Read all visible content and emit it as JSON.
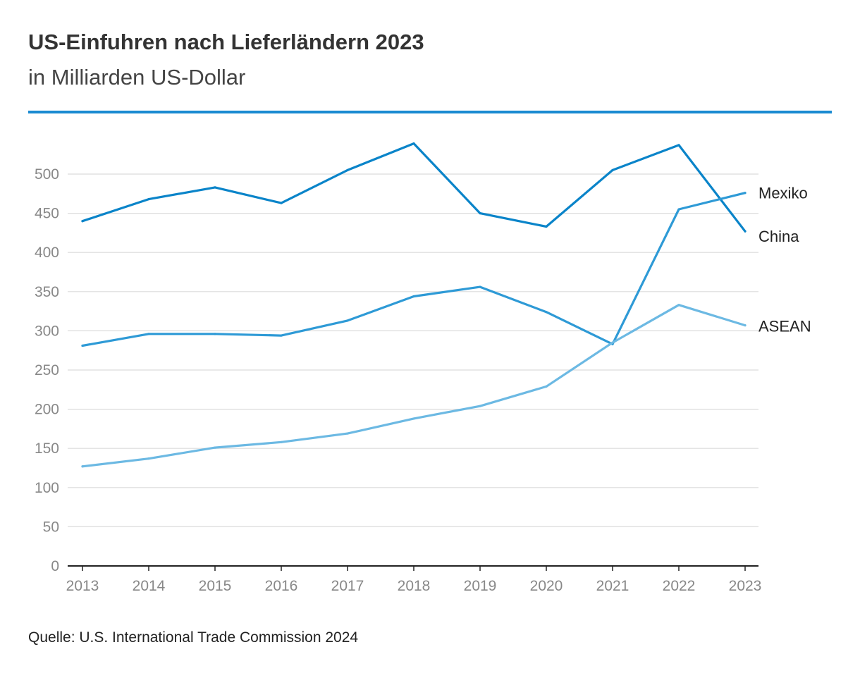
{
  "header": {
    "title": "US-Einfuhren nach Lieferländern 2023",
    "subtitle": "in Milliarden US-Dollar"
  },
  "source": "Quelle: U.S. International Trade Commission 2024",
  "colors": {
    "rule": "#1a8bd1",
    "China": "#0a84c9",
    "Mexiko": "#2e9ad6",
    "ASEAN": "#6cb9e3",
    "grid": "#dcdcdc",
    "axis": "#222222"
  },
  "chart_data": {
    "type": "line",
    "title": "US-Einfuhren nach Lieferländern 2023",
    "subtitle": "in Milliarden US-Dollar",
    "xlabel": "",
    "ylabel": "",
    "x": [
      "2013",
      "2014",
      "2015",
      "2016",
      "2017",
      "2018",
      "2019",
      "2020",
      "2021",
      "2022",
      "2023"
    ],
    "ylim": [
      0,
      500
    ],
    "yticks": [
      0,
      50,
      100,
      150,
      200,
      250,
      300,
      350,
      400,
      450,
      500
    ],
    "grid": true,
    "legend": "direct labels at line ends (right)",
    "series": [
      {
        "name": "China",
        "values": [
          440,
          468,
          483,
          463,
          505,
          539,
          450,
          433,
          505,
          537,
          427
        ]
      },
      {
        "name": "Mexiko",
        "values": [
          281,
          296,
          296,
          294,
          313,
          344,
          356,
          324,
          283,
          455,
          476
        ]
      },
      {
        "name": "ASEAN",
        "values": [
          127,
          137,
          151,
          158,
          169,
          188,
          204,
          229,
          285,
          333,
          307
        ]
      }
    ],
    "end_labels": [
      {
        "series": "Mexiko",
        "text": "Mexiko"
      },
      {
        "series": "China",
        "text": "China"
      },
      {
        "series": "ASEAN",
        "text": "ASEAN"
      }
    ]
  }
}
